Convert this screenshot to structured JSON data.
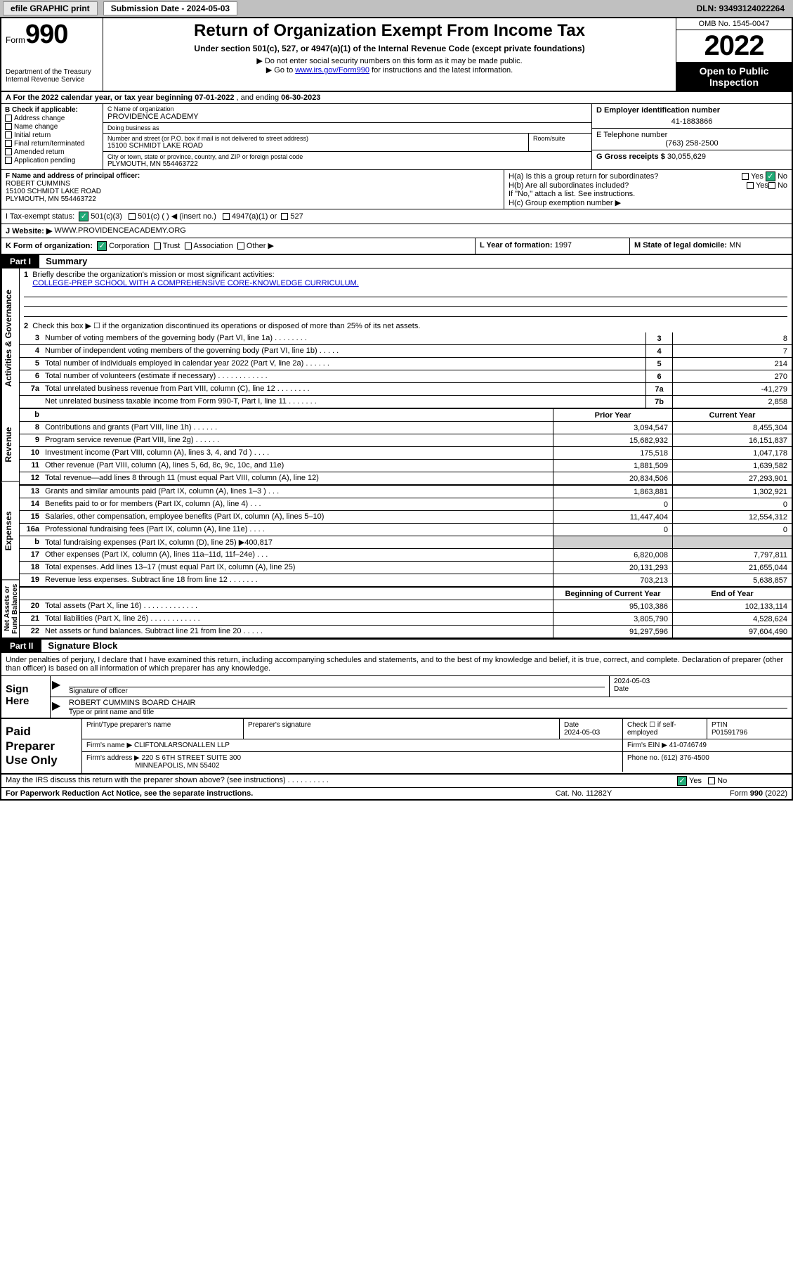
{
  "topbar": {
    "efile": "efile GRAPHIC print",
    "subdate_label": "Submission Date - 2024-05-03",
    "dln": "DLN: 93493124022264"
  },
  "header": {
    "form_label": "Form",
    "form_num": "990",
    "title": "Return of Organization Exempt From Income Tax",
    "subtitle": "Under section 501(c), 527, or 4947(a)(1) of the Internal Revenue Code (except private foundations)",
    "note1": "▶ Do not enter social security numbers on this form as it may be made public.",
    "note2_pre": "▶ Go to ",
    "note2_link": "www.irs.gov/Form990",
    "note2_post": " for instructions and the latest information.",
    "dept": "Department of the Treasury",
    "irs": "Internal Revenue Service",
    "omb": "OMB No. 1545-0047",
    "year": "2022",
    "openpub": "Open to Public Inspection"
  },
  "rowA": {
    "text_pre": "A For the 2022 calendar year, or tax year beginning ",
    "begin": "07-01-2022",
    "mid": " , and ending ",
    "end": "06-30-2023"
  },
  "colB": {
    "label": "B Check if applicable:",
    "items": [
      "Address change",
      "Name change",
      "Initial return",
      "Final return/terminated",
      "Amended return",
      "Application pending"
    ]
  },
  "orgC": {
    "name_lbl": "C Name of organization",
    "name": "PROVIDENCE ACADEMY",
    "dba_lbl": "Doing business as",
    "dba": "",
    "addr_lbl": "Number and street (or P.O. box if mail is not delivered to street address)",
    "addr": "15100 SCHMIDT LAKE ROAD",
    "room_lbl": "Room/suite",
    "city_lbl": "City or town, state or province, country, and ZIP or foreign postal code",
    "city": "PLYMOUTH, MN  554463722"
  },
  "colD": {
    "ein_lbl": "D Employer identification number",
    "ein": "41-1883866",
    "tel_lbl": "E Telephone number",
    "tel": "(763) 258-2500",
    "gross_lbl": "G Gross receipts $",
    "gross": "30,055,629"
  },
  "rowF": {
    "lbl": "F Name and address of principal officer:",
    "name": "ROBERT CUMMINS",
    "addr1": "15100 SCHMIDT LAKE ROAD",
    "addr2": "PLYMOUTH, MN  554463722"
  },
  "rowH": {
    "ha": "H(a)  Is this a group return for subordinates?",
    "ha_yes": "Yes",
    "ha_no": "No",
    "hb": "H(b)  Are all subordinates included?",
    "hb_yes": "Yes",
    "hb_no": "No",
    "hb_note": "If \"No,\" attach a list. See instructions.",
    "hc": "H(c)  Group exemption number ▶"
  },
  "rowI": {
    "lbl": "I   Tax-exempt status:",
    "opt1": "501(c)(3)",
    "opt2": "501(c) (   ) ◀ (insert no.)",
    "opt3": "4947(a)(1) or",
    "opt4": "527"
  },
  "rowJ": {
    "lbl": "J   Website: ▶",
    "val": "WWW.PROVIDENCEACADEMY.ORG"
  },
  "rowK": {
    "lbl": "K Form of organization:",
    "opts": [
      "Corporation",
      "Trust",
      "Association",
      "Other ▶"
    ]
  },
  "rowL": {
    "lbl": "L Year of formation:",
    "val": "1997"
  },
  "rowM": {
    "lbl": "M State of legal domicile:",
    "val": "MN"
  },
  "part1": {
    "label": "Part I",
    "title": "Summary"
  },
  "summary": {
    "sidetabs": [
      "Activities & Governance",
      "Revenue",
      "Expenses",
      "Net Assets or Fund Balances"
    ],
    "line1": "Briefly describe the organization's mission or most significant activities:",
    "mission": "COLLEGE-PREP SCHOOL WITH A COMPREHENSIVE CORE-KNOWLEDGE CURRICULUM.",
    "line2": "Check this box ▶ ☐  if the organization discontinued its operations or disposed of more than 25% of its net assets.",
    "lines_gov": [
      {
        "n": "3",
        "t": "Number of voting members of the governing body (Part VI, line 1a)  .   .   .   .   .   .   .   .",
        "b": "3",
        "v": "8"
      },
      {
        "n": "4",
        "t": "Number of independent voting members of the governing body (Part VI, line 1b)   .   .   .   .   .",
        "b": "4",
        "v": "7"
      },
      {
        "n": "5",
        "t": "Total number of individuals employed in calendar year 2022 (Part V, line 2a)   .   .   .   .   .   .",
        "b": "5",
        "v": "214"
      },
      {
        "n": "6",
        "t": "Total number of volunteers (estimate if necessary)   .   .   .   .   .   .   .   .   .   .   .   .",
        "b": "6",
        "v": "270"
      },
      {
        "n": "7a",
        "t": "Total unrelated business revenue from Part VIII, column (C), line 12   .   .   .   .   .   .   .   .",
        "b": "7a",
        "v": "-41,279"
      },
      {
        "n": "",
        "t": "Net unrelated business taxable income from Form 990-T, Part I, line 11   .   .   .   .   .   .   .",
        "b": "7b",
        "v": "2,858"
      }
    ],
    "colhdr_b": "b",
    "colhdr_prior": "Prior Year",
    "colhdr_curr": "Current Year",
    "lines_rev": [
      {
        "n": "8",
        "t": "Contributions and grants (Part VIII, line 1h)   .   .   .   .   .   .",
        "p": "3,094,547",
        "c": "8,455,304"
      },
      {
        "n": "9",
        "t": "Program service revenue (Part VIII, line 2g)   .   .   .   .   .   .",
        "p": "15,682,932",
        "c": "16,151,837"
      },
      {
        "n": "10",
        "t": "Investment income (Part VIII, column (A), lines 3, 4, and 7d )   .   .   .   .",
        "p": "175,518",
        "c": "1,047,178"
      },
      {
        "n": "11",
        "t": "Other revenue (Part VIII, column (A), lines 5, 6d, 8c, 9c, 10c, and 11e)",
        "p": "1,881,509",
        "c": "1,639,582"
      },
      {
        "n": "12",
        "t": "Total revenue—add lines 8 through 11 (must equal Part VIII, column (A), line 12)",
        "p": "20,834,506",
        "c": "27,293,901"
      }
    ],
    "lines_exp": [
      {
        "n": "13",
        "t": "Grants and similar amounts paid (Part IX, column (A), lines 1–3 )   .   .   .",
        "p": "1,863,881",
        "c": "1,302,921"
      },
      {
        "n": "14",
        "t": "Benefits paid to or for members (Part IX, column (A), line 4)   .   .   .",
        "p": "0",
        "c": "0"
      },
      {
        "n": "15",
        "t": "Salaries, other compensation, employee benefits (Part IX, column (A), lines 5–10)",
        "p": "11,447,404",
        "c": "12,554,312"
      },
      {
        "n": "16a",
        "t": "Professional fundraising fees (Part IX, column (A), line 11e)   .   .   .   .",
        "p": "0",
        "c": "0"
      },
      {
        "n": "b",
        "t": "Total fundraising expenses (Part IX, column (D), line 25) ▶400,817",
        "p": "",
        "c": "",
        "shade": true
      },
      {
        "n": "17",
        "t": "Other expenses (Part IX, column (A), lines 11a–11d, 11f–24e)   .   .   .",
        "p": "6,820,008",
        "c": "7,797,811"
      },
      {
        "n": "18",
        "t": "Total expenses. Add lines 13–17 (must equal Part IX, column (A), line 25)",
        "p": "20,131,293",
        "c": "21,655,044"
      },
      {
        "n": "19",
        "t": "Revenue less expenses. Subtract line 18 from line 12   .   .   .   .   .   .   .",
        "p": "703,213",
        "c": "5,638,857"
      }
    ],
    "colhdr_begin": "Beginning of Current Year",
    "colhdr_end": "End of Year",
    "lines_net": [
      {
        "n": "20",
        "t": "Total assets (Part X, line 16)   .   .   .   .   .   .   .   .   .   .   .   .   .",
        "p": "95,103,386",
        "c": "102,133,114"
      },
      {
        "n": "21",
        "t": "Total liabilities (Part X, line 26)   .   .   .   .   .   .   .   .   .   .   .   .",
        "p": "3,805,790",
        "c": "4,528,624"
      },
      {
        "n": "22",
        "t": "Net assets or fund balances. Subtract line 21 from line 20   .   .   .   .   .",
        "p": "91,297,596",
        "c": "97,604,490"
      }
    ]
  },
  "part2": {
    "label": "Part II",
    "title": "Signature Block"
  },
  "sig": {
    "declare": "Under penalties of perjury, I declare that I have examined this return, including accompanying schedules and statements, and to the best of my knowledge and belief, it is true, correct, and complete. Declaration of preparer (other than officer) is based on all information of which preparer has any knowledge.",
    "sign_here": "Sign Here",
    "sig_officer_lbl": "Signature of officer",
    "date_lbl": "Date",
    "date": "2024-05-03",
    "name": "ROBERT CUMMINS  BOARD CHAIR",
    "name_lbl": "Type or print name and title"
  },
  "prep": {
    "label": "Paid Preparer Use Only",
    "h_name": "Print/Type preparer's name",
    "h_sig": "Preparer's signature",
    "h_date": "Date",
    "date": "2024-05-03",
    "h_check": "Check ☐  if self-employed",
    "h_ptin": "PTIN",
    "ptin": "P01591796",
    "firm_lbl": "Firm's name     ▶",
    "firm": "CLIFTONLARSONALLEN LLP",
    "ein_lbl": "Firm's EIN ▶",
    "ein": "41-0746749",
    "addr_lbl": "Firm's address ▶",
    "addr1": "220 S 6TH STREET SUITE 300",
    "addr2": "MINNEAPOLIS, MN  55402",
    "phone_lbl": "Phone no.",
    "phone": "(612) 376-4500"
  },
  "footer": {
    "discuss": "May the IRS discuss this return with the preparer shown above? (see instructions)   .   .   .   .   .   .   .   .   .   .",
    "yes": "Yes",
    "no": "No",
    "paperwork": "For Paperwork Reduction Act Notice, see the separate instructions.",
    "cat": "Cat. No. 11282Y",
    "form": "Form 990 (2022)"
  }
}
